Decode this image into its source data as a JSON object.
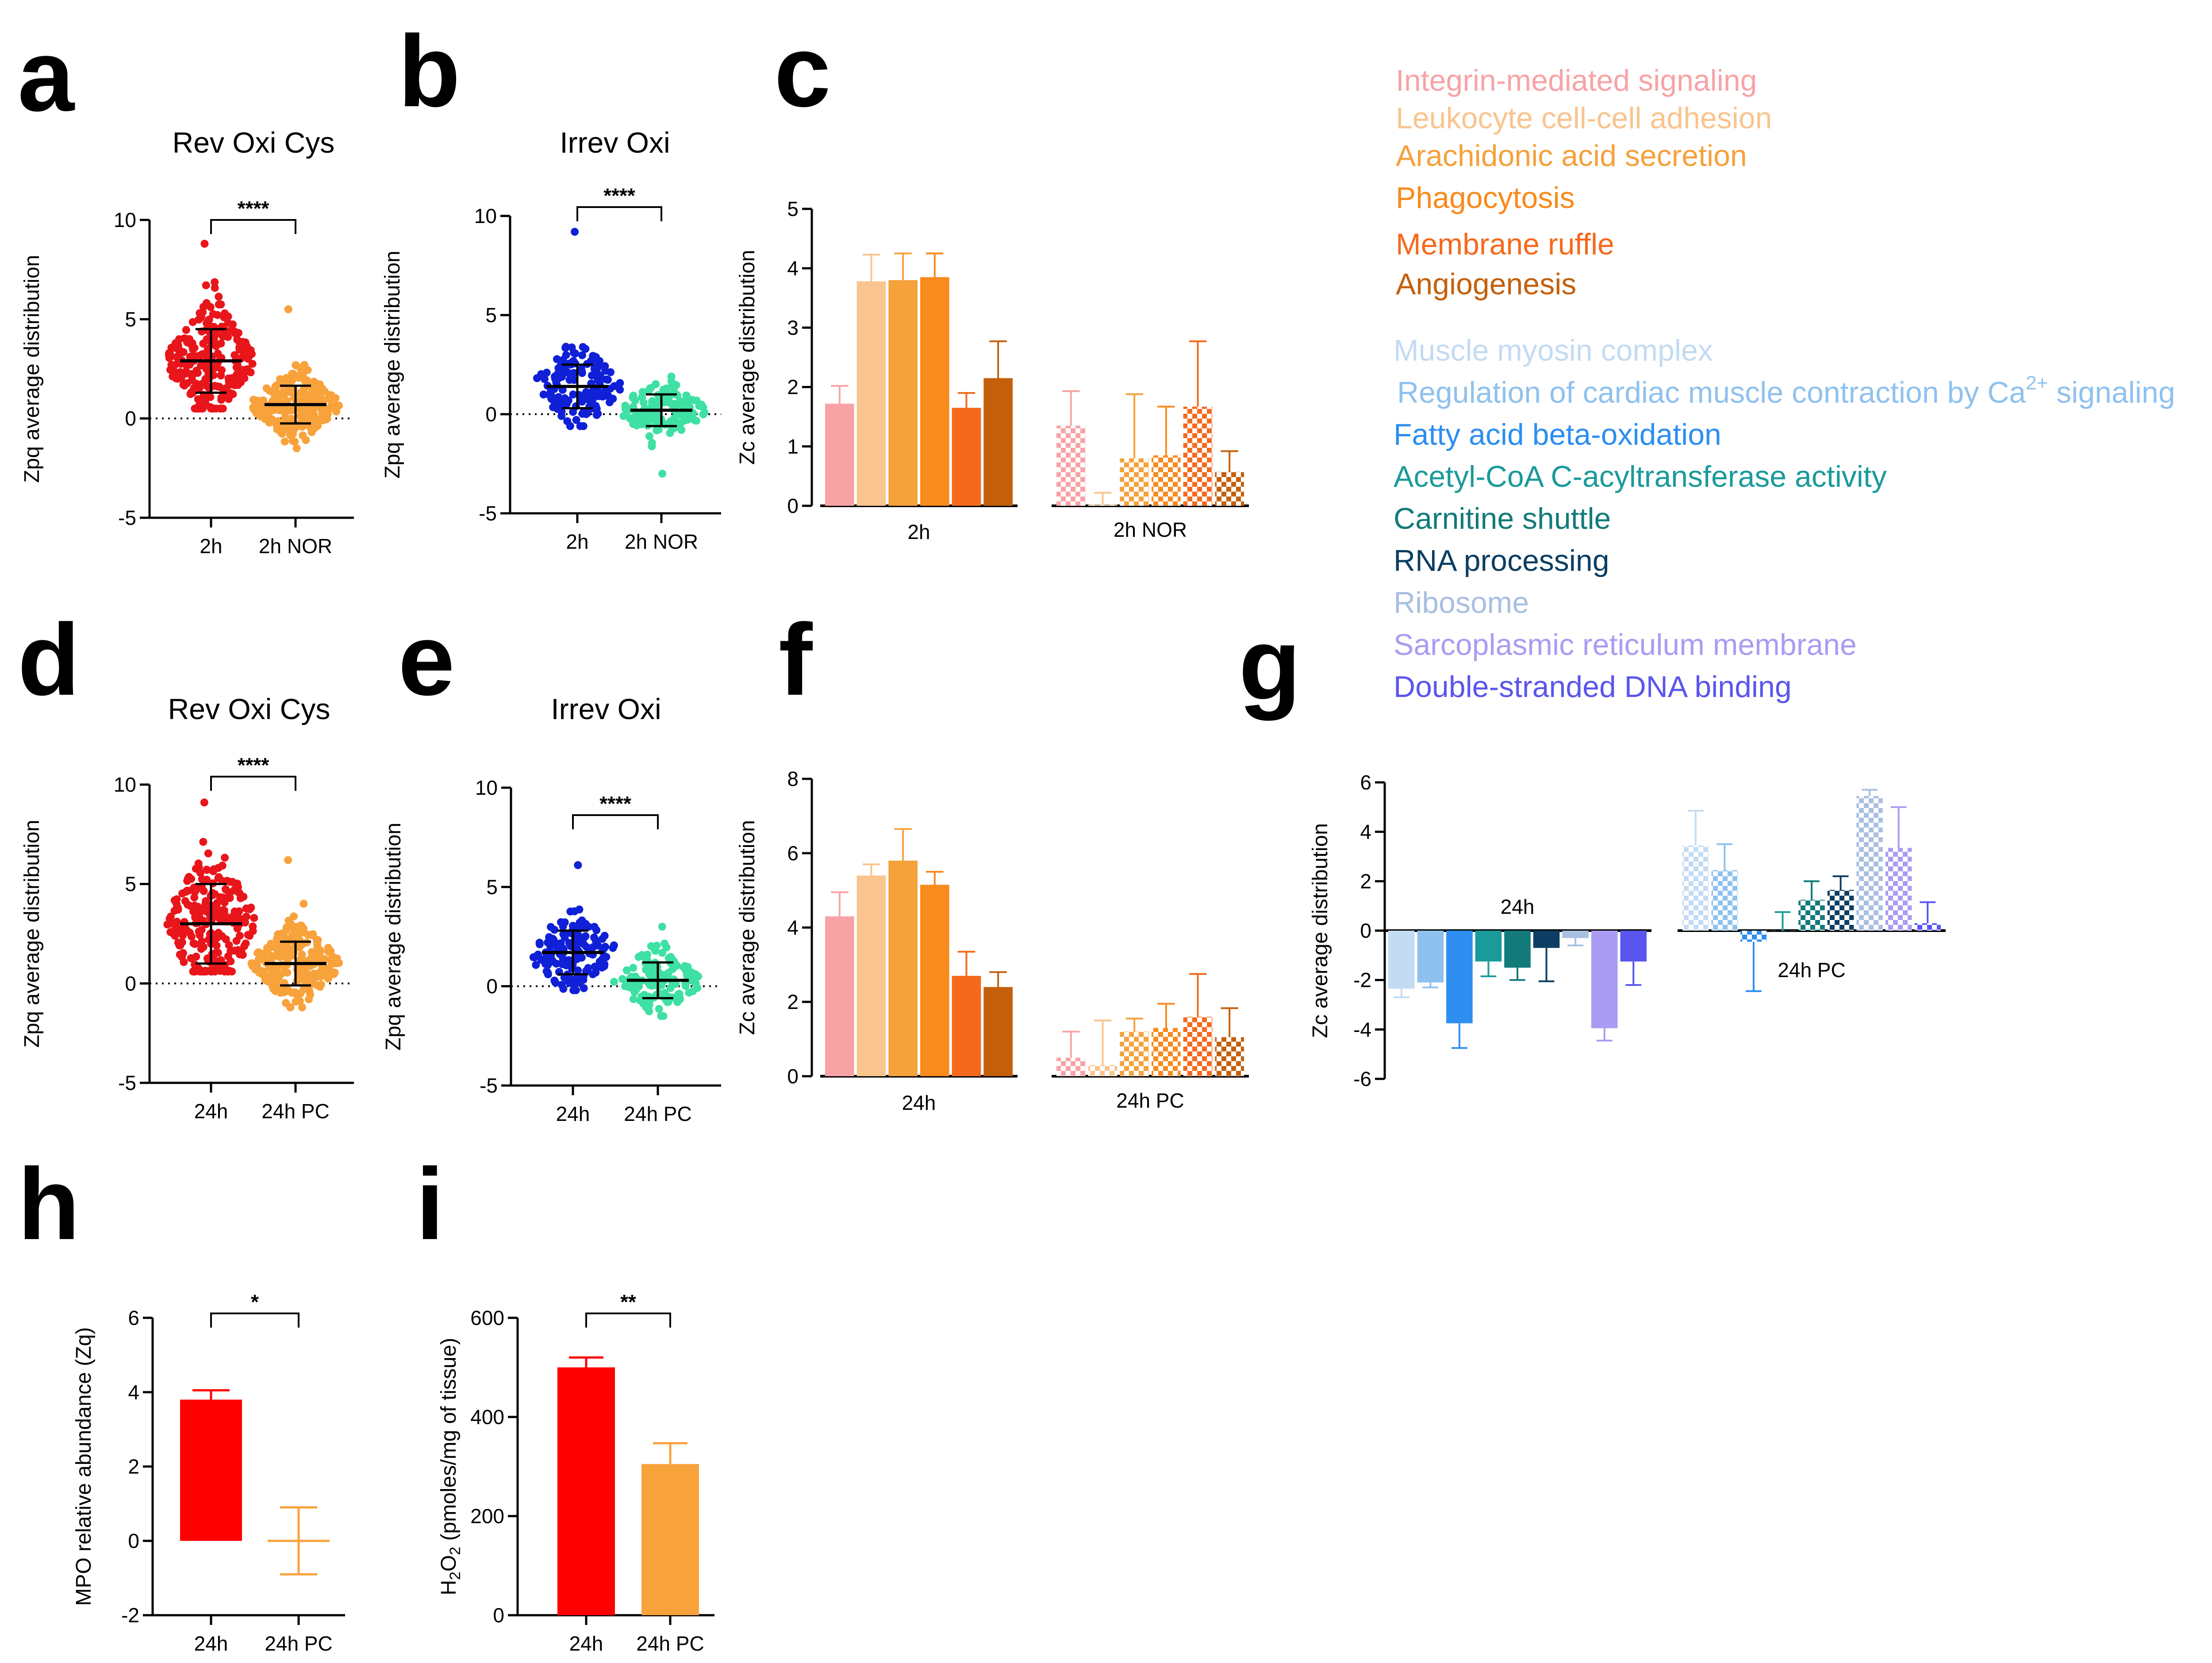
{
  "panel_labels": [
    "a",
    "b",
    "c",
    "d",
    "e",
    "f",
    "g",
    "h",
    "i"
  ],
  "legend": {
    "groupA": [
      {
        "label": "Integrin-mediated signaling",
        "color": "#f7a3a6"
      },
      {
        "label": "Leukocyte cell-cell adhesion",
        "color": "#f9c48e"
      },
      {
        "label": "Arachidonic acid secretion",
        "color": "#f5a13c"
      },
      {
        "label": "Phagocytosis",
        "color": "#f98a1c"
      },
      {
        "label": "Membrane ruffle",
        "color": "#f5691c"
      },
      {
        "label": "Angiogenesis",
        "color": "#c4600c"
      }
    ],
    "groupB": [
      {
        "label": "Muscle myosin complex",
        "color": "#c3dbf3"
      },
      {
        "label": "Regulation of cardiac muscle contraction by Ca",
        "sup": "2+",
        "tail": " signaling",
        "color": "#8fc1ee"
      },
      {
        "label": "Fatty acid beta-oxidation",
        "color": "#2d8ef0"
      },
      {
        "label": "Acetyl-CoA C-acyltransferase activity",
        "color": "#1a9a9a"
      },
      {
        "label": "Carnitine shuttle",
        "color": "#127a7a"
      },
      {
        "label": "RNA processing",
        "color": "#0c3e63"
      },
      {
        "label": "Ribosome",
        "color": "#a8bfe0"
      },
      {
        "label": "Sarcoplasmic reticulum membrane",
        "color": "#a99cf2"
      },
      {
        "label": "Double-stranded DNA binding",
        "color": "#5a55ee"
      }
    ]
  },
  "chart_data": [
    {
      "id": "a",
      "type": "scatter",
      "title": "Rev Oxi Cys",
      "ylabel": "Zpq average distribution",
      "ylim": [
        -5,
        10
      ],
      "yticks": [
        -5,
        0,
        5,
        10
      ],
      "categories": [
        "2h",
        "2h NOR"
      ],
      "groups": [
        {
          "name": "2h",
          "mean": 2.9,
          "sd": 1.6,
          "min": 0.5,
          "max": 8.8,
          "n": 230,
          "color": "#e8151b"
        },
        {
          "name": "2h NOR",
          "mean": 0.7,
          "sd": 0.95,
          "min": -1.5,
          "max": 5.5,
          "n": 230,
          "color": "#f8a23c"
        }
      ],
      "significance": "****"
    },
    {
      "id": "b",
      "type": "scatter",
      "title": "Irrev Oxi",
      "ylabel": "Zpq average distribution",
      "ylim": [
        -5,
        10
      ],
      "yticks": [
        -5,
        0,
        5,
        10
      ],
      "categories": [
        "2h",
        "2h NOR"
      ],
      "groups": [
        {
          "name": "2h",
          "mean": 1.4,
          "sd": 1.1,
          "min": -0.6,
          "max": 9.2,
          "n": 140,
          "color": "#1020d6"
        },
        {
          "name": "2h NOR",
          "mean": 0.2,
          "sd": 0.8,
          "min": -3.0,
          "max": 1.9,
          "n": 140,
          "color": "#3fe0a3"
        }
      ],
      "significance": "****"
    },
    {
      "id": "c",
      "type": "bar",
      "ylabel": "Zc average distribution",
      "ylim": [
        0,
        5
      ],
      "yticks": [
        0,
        1,
        2,
        3,
        4,
        5
      ],
      "categories": [
        "2h",
        "2h NOR"
      ],
      "group1": {
        "name": "2h",
        "values": [
          1.72,
          3.78,
          3.8,
          3.85,
          1.65,
          2.15
        ],
        "errors": [
          0.3,
          0.45,
          0.45,
          0.4,
          0.25,
          0.62
        ]
      },
      "group2": {
        "name": "2h NOR",
        "values": [
          1.35,
          0.02,
          0.8,
          0.85,
          1.67,
          0.57
        ],
        "errors": [
          0.58,
          0.2,
          1.08,
          0.82,
          1.1,
          0.35
        ]
      }
    },
    {
      "id": "d",
      "type": "scatter",
      "title": "Rev Oxi Cys",
      "ylabel": "Zpq average distribution",
      "ylim": [
        -5,
        10
      ],
      "yticks": [
        -5,
        0,
        5,
        10
      ],
      "categories": [
        "24h",
        "24h PC"
      ],
      "groups": [
        {
          "name": "24h",
          "mean": 3.0,
          "sd": 2.0,
          "min": 0.6,
          "max": 9.1,
          "n": 230,
          "color": "#e8151b"
        },
        {
          "name": "24h PC",
          "mean": 1.0,
          "sd": 1.1,
          "min": -1.2,
          "max": 6.2,
          "n": 230,
          "color": "#f8a23c"
        }
      ],
      "significance": "****"
    },
    {
      "id": "e",
      "type": "scatter",
      "title": "Irrev Oxi",
      "ylabel": "Zpq average distribution",
      "ylim": [
        -5,
        10
      ],
      "yticks": [
        -5,
        0,
        5,
        10
      ],
      "categories": [
        "24h",
        "24h PC"
      ],
      "groups": [
        {
          "name": "24h",
          "mean": 1.7,
          "sd": 1.1,
          "min": -0.2,
          "max": 6.1,
          "n": 140,
          "color": "#1020d6"
        },
        {
          "name": "24h PC",
          "mean": 0.3,
          "sd": 0.9,
          "min": -1.5,
          "max": 3.0,
          "n": 140,
          "color": "#3fe0a3"
        }
      ],
      "significance": "****"
    },
    {
      "id": "f",
      "type": "bar",
      "ylabel": "Zc average distribution",
      "ylim": [
        0,
        8
      ],
      "yticks": [
        0,
        2,
        4,
        6,
        8
      ],
      "categories": [
        "24h",
        "24h PC"
      ],
      "group1": {
        "name": "24h",
        "values": [
          4.3,
          5.4,
          5.8,
          5.15,
          2.7,
          2.4
        ],
        "errors": [
          0.65,
          0.3,
          0.85,
          0.35,
          0.65,
          0.4
        ]
      },
      "group2": {
        "name": "24h PC",
        "values": [
          0.5,
          0.3,
          1.2,
          1.3,
          1.6,
          1.05
        ],
        "errors": [
          0.7,
          1.2,
          0.35,
          0.65,
          1.15,
          0.78
        ]
      }
    },
    {
      "id": "g",
      "type": "bar",
      "ylabel": "Zc average distribution",
      "ylim": [
        -6,
        6
      ],
      "yticks": [
        -6,
        -4,
        -2,
        0,
        2,
        4,
        6
      ],
      "categories": [
        "24h",
        "24h PC"
      ],
      "group1": {
        "name": "24h",
        "values": [
          -2.35,
          -2.1,
          -3.75,
          -1.25,
          -1.5,
          -0.7,
          -0.3,
          -3.95,
          -1.25
        ],
        "errors": [
          0.35,
          0.2,
          1.0,
          0.6,
          0.5,
          1.35,
          0.3,
          0.5,
          0.95
        ]
      },
      "group2": {
        "name": "24h PC",
        "values": [
          3.45,
          2.45,
          -0.45,
          0.0,
          1.25,
          1.65,
          5.45,
          3.35,
          0.3
        ],
        "errors": [
          1.4,
          1.05,
          2.0,
          0.75,
          0.75,
          0.55,
          0.25,
          1.65,
          0.85
        ]
      }
    },
    {
      "id": "h",
      "type": "bar",
      "ylabel": "MPO relative abundance (Zq)",
      "ylim": [
        -2,
        6
      ],
      "yticks": [
        -2,
        0,
        2,
        4,
        6
      ],
      "categories": [
        "24h",
        "24h PC"
      ],
      "values": [
        3.8,
        0.0
      ],
      "errors": [
        0.25,
        0.9
      ],
      "colors": [
        "#fe0000",
        "#f8a23c"
      ],
      "fills": [
        true,
        false
      ],
      "significance": "*"
    },
    {
      "id": "i",
      "type": "bar",
      "ylabel": "H2O2 (pmoles/mg of tissue)",
      "ylabel_parts": [
        "H",
        "2",
        "O",
        "2",
        " (pmoles/mg of tissue)"
      ],
      "ylim": [
        0,
        600
      ],
      "yticks": [
        0,
        200,
        400,
        600
      ],
      "categories": [
        "24h",
        "24h PC"
      ],
      "values": [
        500,
        305
      ],
      "errors": [
        20,
        42
      ],
      "colors": [
        "#fe0000",
        "#f8a23c"
      ],
      "fills": [
        true,
        true
      ],
      "significance": "**"
    }
  ]
}
